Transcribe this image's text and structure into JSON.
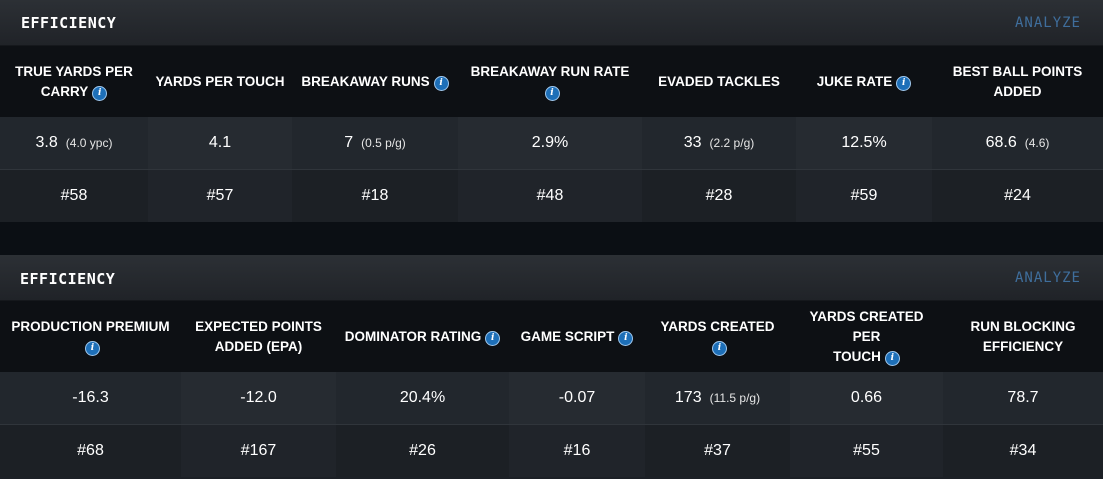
{
  "panels": [
    {
      "title": "EFFICIENCY",
      "analyze_label": "ANALYZE",
      "metrics": [
        {
          "label_lines": [
            "TRUE YARDS PER",
            "CARRY"
          ],
          "info": true,
          "value": "3.8",
          "sub": "(4.0 ypc)",
          "rank": "#58"
        },
        {
          "label_lines": [
            "YARDS PER TOUCH"
          ],
          "info": false,
          "value": "4.1",
          "sub": "",
          "rank": "#57"
        },
        {
          "label_lines": [
            "BREAKAWAY RUNS"
          ],
          "info": true,
          "value": "7",
          "sub": "(0.5 p/g)",
          "rank": "#18"
        },
        {
          "label_lines": [
            "BREAKAWAY RUN RATE"
          ],
          "info": true,
          "value": "2.9%",
          "sub": "",
          "rank": "#48"
        },
        {
          "label_lines": [
            "EVADED TACKLES"
          ],
          "info": false,
          "value": "33",
          "sub": "(2.2 p/g)",
          "rank": "#28"
        },
        {
          "label_lines": [
            "JUKE RATE"
          ],
          "info": true,
          "value": "12.5%",
          "sub": "",
          "rank": "#59"
        },
        {
          "label_lines": [
            "BEST BALL POINTS",
            "ADDED"
          ],
          "info": false,
          "value": "68.6",
          "sub": "(4.6)",
          "rank": "#24"
        }
      ]
    },
    {
      "title": "EFFICIENCY",
      "analyze_label": "ANALYZE",
      "metrics": [
        {
          "label_lines": [
            "PRODUCTION PREMIUM",
            ""
          ],
          "info": true,
          "value": "-16.3",
          "sub": "",
          "rank": "#68"
        },
        {
          "label_lines": [
            "EXPECTED POINTS",
            "ADDED (EPA)"
          ],
          "info": false,
          "value": "-12.0",
          "sub": "",
          "rank": "#167"
        },
        {
          "label_lines": [
            "DOMINATOR RATING"
          ],
          "info": true,
          "value": "20.4%",
          "sub": "",
          "rank": "#26"
        },
        {
          "label_lines": [
            "GAME SCRIPT"
          ],
          "info": true,
          "value": "-0.07",
          "sub": "",
          "rank": "#16"
        },
        {
          "label_lines": [
            "YARDS CREATED"
          ],
          "info": true,
          "value": "173",
          "sub": "(11.5 p/g)",
          "rank": "#37"
        },
        {
          "label_lines": [
            "YARDS CREATED PER",
            "TOUCH"
          ],
          "info": true,
          "value": "0.66",
          "sub": "",
          "rank": "#55"
        },
        {
          "label_lines": [
            "RUN BLOCKING",
            "EFFICIENCY"
          ],
          "info": false,
          "value": "78.7",
          "sub": "",
          "rank": "#34"
        }
      ]
    }
  ],
  "icons": {
    "info": "info-icon"
  },
  "colors": {
    "accent": "#1d6fb8",
    "analyze": "#3f6e9c"
  }
}
